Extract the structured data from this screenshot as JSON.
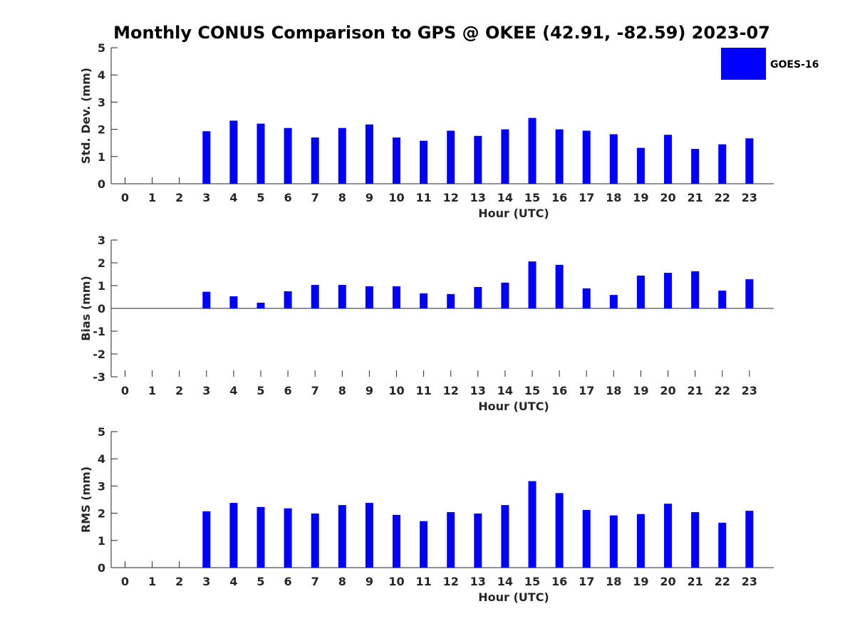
{
  "title": "Monthly CONUS Comparison to GPS @ OKEE (42.91, -82.59) 2023-07",
  "legend": {
    "label": "GOES-16",
    "color": "#0000ff",
    "placement": "top-right"
  },
  "bar_color": "#0000ff",
  "chart_data": [
    {
      "type": "bar",
      "ylabel": "Std. Dev. (mm)",
      "xlabel": "Hour (UTC)",
      "ylim": [
        0,
        5
      ],
      "yticks": [
        0,
        1,
        2,
        3,
        4,
        5
      ],
      "categories": [
        "0",
        "1",
        "2",
        "3",
        "4",
        "5",
        "6",
        "7",
        "8",
        "9",
        "10",
        "11",
        "12",
        "13",
        "14",
        "15",
        "16",
        "17",
        "18",
        "19",
        "20",
        "21",
        "22",
        "23"
      ],
      "series": [
        {
          "name": "GOES-16",
          "values": [
            null,
            null,
            null,
            1.93,
            2.32,
            2.21,
            2.05,
            1.7,
            2.05,
            2.18,
            1.7,
            1.58,
            1.95,
            1.76,
            2.0,
            2.42,
            2.0,
            1.95,
            1.82,
            1.32,
            1.8,
            1.28,
            1.45,
            1.67
          ]
        }
      ]
    },
    {
      "type": "bar",
      "ylabel": "Bias (mm)",
      "xlabel": "Hour (UTC)",
      "ylim": [
        -3,
        3
      ],
      "yticks": [
        -3,
        -2,
        -1,
        0,
        1,
        2,
        3
      ],
      "categories": [
        "0",
        "1",
        "2",
        "3",
        "4",
        "5",
        "6",
        "7",
        "8",
        "9",
        "10",
        "11",
        "12",
        "13",
        "14",
        "15",
        "16",
        "17",
        "18",
        "19",
        "20",
        "21",
        "22",
        "23"
      ],
      "series": [
        {
          "name": "GOES-16",
          "values": [
            null,
            null,
            null,
            0.73,
            0.53,
            0.25,
            0.75,
            1.03,
            1.03,
            0.97,
            0.97,
            0.66,
            0.63,
            0.94,
            1.13,
            2.06,
            1.91,
            0.88,
            0.59,
            1.44,
            1.56,
            1.63,
            0.78,
            1.28
          ]
        }
      ]
    },
    {
      "type": "bar",
      "ylabel": "RMS (mm)",
      "xlabel": "Hour (UTC)",
      "ylim": [
        0,
        5
      ],
      "yticks": [
        0,
        1,
        2,
        3,
        4,
        5
      ],
      "categories": [
        "0",
        "1",
        "2",
        "3",
        "4",
        "5",
        "6",
        "7",
        "8",
        "9",
        "10",
        "11",
        "12",
        "13",
        "14",
        "15",
        "16",
        "17",
        "18",
        "19",
        "20",
        "21",
        "22",
        "23"
      ],
      "series": [
        {
          "name": "GOES-16",
          "values": [
            null,
            null,
            null,
            2.07,
            2.38,
            2.23,
            2.18,
            1.99,
            2.3,
            2.38,
            1.94,
            1.71,
            2.04,
            1.99,
            2.3,
            3.18,
            2.74,
            2.12,
            1.92,
            1.97,
            2.35,
            2.04,
            1.65,
            2.09
          ]
        }
      ]
    }
  ]
}
